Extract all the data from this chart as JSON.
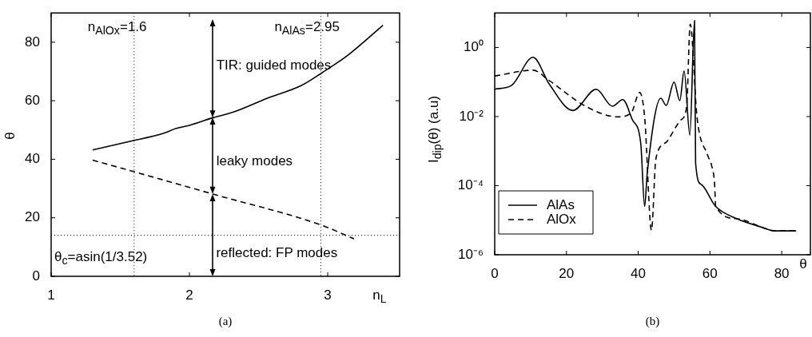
{
  "chart_data": [
    {
      "type": "line",
      "title": "(a)",
      "xlabel": "n$_{L}$",
      "ylabel": "θ",
      "xlim": [
        1,
        3.52
      ],
      "xticks": [
        1,
        2,
        3
      ],
      "ylim": [
        0,
        90
      ],
      "yticks": [
        0,
        20,
        40,
        60,
        80
      ],
      "series": [
        {
          "color": "#000000",
          "line_style": "solid",
          "x": [
            1.3,
            1.57,
            1.815,
            1.9,
            2.0,
            2.17,
            2.31,
            2.56,
            2.81,
            2.96,
            3.15,
            3.4
          ],
          "values": [
            43.2,
            46.1,
            48.9,
            50.5,
            51.6,
            54.2,
            56,
            60.8,
            65.2,
            69.6,
            75.7,
            85.8
          ]
        },
        {
          "color": "#000000",
          "line_style": "dashed",
          "x": [
            1.3,
            1.565,
            2.17,
            2.96,
            3.19
          ],
          "values": [
            39.7,
            36.2,
            28.1,
            17.4,
            12.8
          ]
        }
      ],
      "ref_lines": [
        {
          "axis": "x",
          "value": 1.6,
          "label": "n$_{AlOx}$=1.6",
          "color": "#000000",
          "line_style": "dotted"
        },
        {
          "axis": "x",
          "value": 2.95,
          "label": "n$_{AlAs}$=2.95",
          "color": "#000000",
          "line_style": "dotted"
        },
        {
          "axis": "y",
          "value": 14,
          "label": "θ$_{c}$=asin(1/3.52)",
          "color": "#000000",
          "line_style": "dotted"
        }
      ],
      "annotations": [
        "TIR: guided modes",
        "leaky modes",
        {
          "text": "reflected: FP modes",
          "x": 2.17,
          "y": 28.1
        }
      ]
    },
    {
      "type": "line",
      "title": "(b)",
      "xlabel": "θ",
      "ylabel": "I$_{dip}$(θ) (a.u)",
      "log": "y",
      "legend": "bottom left",
      "xlim": [
        0,
        88
      ],
      "xticks": [
        0,
        20,
        40,
        60,
        80
      ],
      "ylim": [
        1e-06,
        10
      ],
      "yticks": [
        {
          "value": 1e-06,
          "label": "10⁻⁶"
        },
        {
          "value": 0.0001,
          "label": "10⁻⁴"
        },
        {
          "value": 0.01,
          "label": "10⁻²"
        },
        {
          "value": 1,
          "label": "10⁰"
        }
      ],
      "series": [
        {
          "name": "AlAs",
          "color": "#000000",
          "line_style": "solid",
          "x": [
            0,
            4.7,
            10.7,
            15.2,
            21.8,
            28.3,
            32.8,
            35.7,
            38.4,
            40.7,
            41.8,
            42.5,
            46.3,
            47.8,
            50.0,
            51.6,
            52.8,
            54.4,
            55.7,
            56.0,
            57.5,
            61.6,
            67.6,
            74.4,
            78.1,
            84.0
          ],
          "values": [
            0.062,
            0.08,
            0.52,
            0.087,
            0.015,
            0.062,
            0.02,
            0.031,
            0.008,
            0.0017,
            2.5e-05,
            0.00022,
            0.034,
            0.021,
            0.1,
            0.029,
            0.21,
            0.0029,
            6,
            0.00045,
            0.00011,
            2.5e-05,
            1.1e-05,
            6.3e-06,
            4.9e-06,
            4.9e-06
          ]
        },
        {
          "name": "AlOx",
          "color": "#000000",
          "line_style": "dashed",
          "x": [
            0,
            10.7,
            15.2,
            25.7,
            34.3,
            38.1,
            40.4,
            41.8,
            43.7,
            44.8,
            45.2,
            48.2,
            51.9,
            53.5,
            54.5,
            56.4,
            59.4,
            60.5,
            61.3,
            61.6,
            67.6,
            74.4,
            78.1,
            84.0
          ],
          "values": [
            0.15,
            0.22,
            0.11,
            0.019,
            0.0098,
            0.013,
            0.05,
            0.0095,
            5.1e-06,
            0.00045,
            0.0008,
            0.002,
            0.008,
            0.019,
            4.7,
            0.0095,
            0.00074,
            0.00037,
            0.00011,
            2.5e-05,
            1.1e-05,
            6.3e-06,
            4.9e-06,
            4.9e-06
          ]
        }
      ]
    }
  ]
}
